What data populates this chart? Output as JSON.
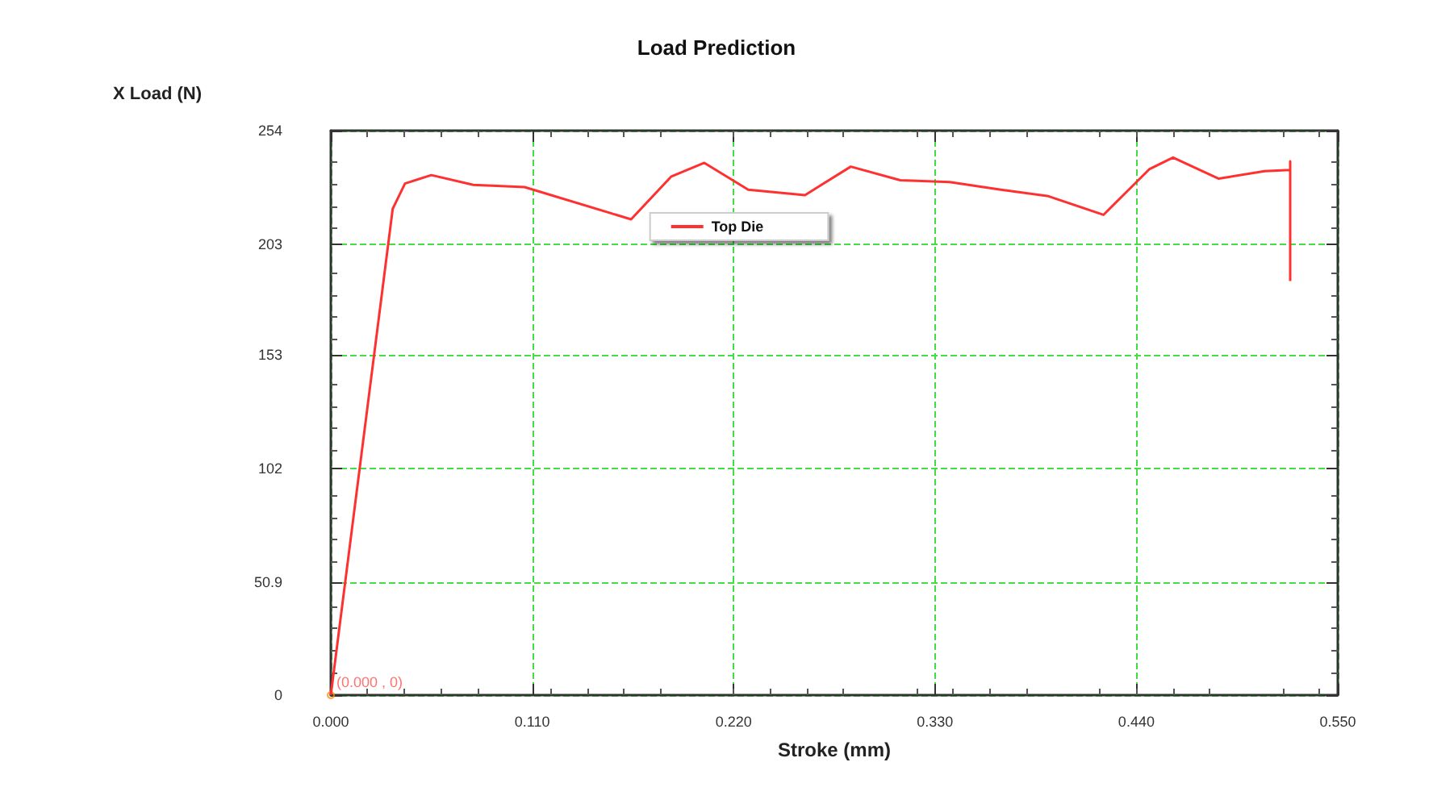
{
  "chart_data": {
    "type": "line",
    "title": "Load Prediction",
    "xlabel": "Stroke (mm)",
    "ylabel": "X Load (N)",
    "series": [
      {
        "name": "Top Die",
        "color": "#ff3030",
        "x": [
          0,
          0.0338,
          0.0405,
          0.0549,
          0.0778,
          0.1058,
          0.164,
          0.186,
          0.204,
          0.228,
          0.259,
          0.284,
          0.311,
          0.338,
          0.366,
          0.392,
          0.422,
          0.447,
          0.46,
          0.485,
          0.51,
          0.524,
          0.524,
          0.524
        ],
        "values": [
          0,
          218.8,
          230.2,
          234.0,
          229.6,
          228.6,
          214.1,
          233.4,
          239.5,
          227.4,
          225.0,
          237.8,
          231.7,
          230.9,
          227.4,
          224.5,
          216.1,
          236.6,
          241.9,
          232.4,
          235.8,
          236.3,
          240.2,
          186.3
        ]
      }
    ],
    "xlim": [
      0,
      0.55
    ],
    "xticks": [
      {
        "value": 0,
        "label": "0.000"
      },
      {
        "value": 0.11,
        "label": "0.110"
      },
      {
        "value": 0.22,
        "label": "0.220"
      },
      {
        "value": 0.33,
        "label": "0.330"
      },
      {
        "value": 0.44,
        "label": "0.440"
      },
      {
        "value": 0.55,
        "label": "0.550"
      }
    ],
    "ylim": [
      0,
      254
    ],
    "yticks": [
      0,
      50.9,
      102,
      153,
      203,
      254
    ],
    "annotations": [
      {
        "text": "(0.000 , 0)",
        "x": 0,
        "y": 0
      }
    ],
    "grid": true,
    "legend": "top",
    "marker": "none",
    "line_style": "solid"
  }
}
